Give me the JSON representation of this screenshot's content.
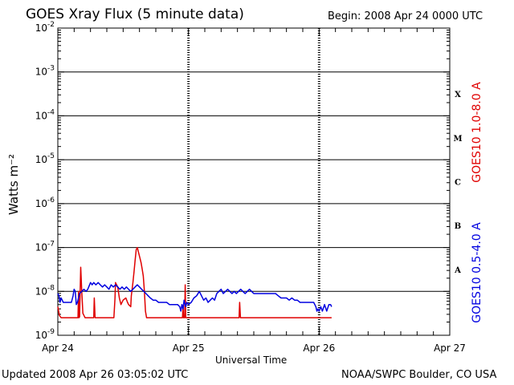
{
  "header": {
    "title": "GOES Xray Flux (5 minute data)",
    "begin": "Begin:  2008 Apr 24 0000 UTC"
  },
  "footer": {
    "updated": "Updated 2008 Apr 26 03:05:02 UTC",
    "credit": "NOAA/SWPC Boulder, CO USA"
  },
  "chart_data": {
    "type": "line",
    "title": "GOES Xray Flux (5 minute data)",
    "xlabel": "Universal Time",
    "ylabel": "Watts m⁻²",
    "yscale": "log",
    "ylim": [
      1e-09,
      0.01
    ],
    "xlim": [
      0,
      72
    ],
    "x_unit": "hours since 2008 Apr 24 0000 UTC",
    "x_ticks": [
      {
        "x": 0,
        "label": "Apr 24"
      },
      {
        "x": 24,
        "label": "Apr 25"
      },
      {
        "x": 48,
        "label": "Apr 26"
      },
      {
        "x": 72,
        "label": "Apr 27"
      }
    ],
    "y_ticks": [
      {
        "exp": -9,
        "base": "10",
        "sup": "-9"
      },
      {
        "exp": -8,
        "base": "10",
        "sup": "-8"
      },
      {
        "exp": -7,
        "base": "10",
        "sup": "-7"
      },
      {
        "exp": -6,
        "base": "10",
        "sup": "-6"
      },
      {
        "exp": -5,
        "base": "10",
        "sup": "-5"
      },
      {
        "exp": -4,
        "base": "10",
        "sup": "-4"
      },
      {
        "exp": -3,
        "base": "10",
        "sup": "-3"
      },
      {
        "exp": -2,
        "base": "10",
        "sup": "-2"
      }
    ],
    "flare_classes": [
      {
        "label": "A",
        "exp": -7.5
      },
      {
        "label": "B",
        "exp": -6.5
      },
      {
        "label": "C",
        "exp": -5.5
      },
      {
        "label": "M",
        "exp": -4.5
      },
      {
        "label": "X",
        "exp": -3.5
      }
    ],
    "grid": "horizontal lines at each decade from 1e-8 to 1e-3; dashed vertical lines at day boundaries",
    "series": [
      {
        "name": "GOES10 1.0-8.0 A",
        "color": "#e00000",
        "points": [
          [
            0.0,
            -8.35
          ],
          [
            0.3,
            -8.55
          ],
          [
            0.6,
            -8.6
          ],
          [
            1.2,
            -8.6
          ],
          [
            2.0,
            -8.6
          ],
          [
            3.0,
            -8.6
          ],
          [
            3.7,
            -8.6
          ],
          [
            3.8,
            -8.0
          ],
          [
            3.9,
            -8.6
          ],
          [
            4.0,
            -8.58
          ],
          [
            4.2,
            -7.45
          ],
          [
            4.4,
            -8.0
          ],
          [
            4.6,
            -8.5
          ],
          [
            5.0,
            -8.6
          ],
          [
            6.0,
            -8.6
          ],
          [
            6.6,
            -8.6
          ],
          [
            6.7,
            -8.15
          ],
          [
            6.85,
            -8.6
          ],
          [
            7.5,
            -8.6
          ],
          [
            8.5,
            -8.6
          ],
          [
            9.5,
            -8.6
          ],
          [
            10.3,
            -8.6
          ],
          [
            10.5,
            -8.15
          ],
          [
            10.6,
            -7.8
          ],
          [
            11.0,
            -7.9
          ],
          [
            11.3,
            -8.15
          ],
          [
            11.6,
            -8.3
          ],
          [
            12.0,
            -8.2
          ],
          [
            12.5,
            -8.15
          ],
          [
            12.8,
            -8.25
          ],
          [
            13.0,
            -8.3
          ],
          [
            13.4,
            -8.35
          ],
          [
            13.5,
            -8.1
          ],
          [
            13.8,
            -7.8
          ],
          [
            14.0,
            -7.55
          ],
          [
            14.2,
            -7.3
          ],
          [
            14.4,
            -7.05
          ],
          [
            14.6,
            -7.0
          ],
          [
            14.8,
            -7.1
          ],
          [
            15.0,
            -7.2
          ],
          [
            15.3,
            -7.35
          ],
          [
            15.5,
            -7.5
          ],
          [
            15.7,
            -7.65
          ],
          [
            15.9,
            -8.0
          ],
          [
            16.1,
            -8.45
          ],
          [
            16.3,
            -8.6
          ],
          [
            17.0,
            -8.6
          ],
          [
            18.0,
            -8.6
          ],
          [
            19.0,
            -8.6
          ],
          [
            20.0,
            -8.6
          ],
          [
            21.0,
            -8.6
          ],
          [
            22.0,
            -8.6
          ],
          [
            22.9,
            -8.6
          ],
          [
            23.0,
            -8.35
          ],
          [
            23.1,
            -8.6
          ],
          [
            23.3,
            -8.6
          ],
          [
            23.4,
            -7.85
          ],
          [
            23.5,
            -8.6
          ],
          [
            23.7,
            -8.6
          ],
          [
            24.0,
            -8.6
          ],
          [
            25.0,
            -8.6
          ],
          [
            26.0,
            -8.6
          ],
          [
            27.0,
            -8.6
          ],
          [
            28.0,
            -8.6
          ],
          [
            29.0,
            -8.6
          ],
          [
            30.0,
            -8.6
          ],
          [
            31.0,
            -8.6
          ],
          [
            32.0,
            -8.6
          ],
          [
            33.0,
            -8.6
          ],
          [
            33.3,
            -8.6
          ],
          [
            33.4,
            -8.25
          ],
          [
            33.55,
            -8.6
          ],
          [
            34.0,
            -8.6
          ],
          [
            35.0,
            -8.6
          ],
          [
            36.0,
            -8.6
          ],
          [
            37.0,
            -8.6
          ],
          [
            38.0,
            -8.6
          ],
          [
            39.0,
            -8.6
          ],
          [
            40.0,
            -8.6
          ],
          [
            41.0,
            -8.6
          ],
          [
            42.0,
            -8.6
          ],
          [
            43.0,
            -8.6
          ],
          [
            44.0,
            -8.6
          ],
          [
            45.0,
            -8.6
          ],
          [
            46.0,
            -8.6
          ],
          [
            47.0,
            -8.6
          ],
          [
            48.0,
            -8.6
          ],
          [
            49.0,
            -8.6
          ],
          [
            50.0,
            -8.6
          ],
          [
            50.3,
            -8.6
          ]
        ]
      },
      {
        "name": "GOES10 0.5-4.0 A",
        "color": "#0000e0",
        "points": [
          [
            0.0,
            -8.05
          ],
          [
            0.2,
            -8.1
          ],
          [
            0.4,
            -8.25
          ],
          [
            0.6,
            -8.15
          ],
          [
            0.8,
            -8.2
          ],
          [
            1.0,
            -8.25
          ],
          [
            1.5,
            -8.25
          ],
          [
            2.0,
            -8.25
          ],
          [
            2.5,
            -8.25
          ],
          [
            2.8,
            -8.1
          ],
          [
            3.0,
            -7.95
          ],
          [
            3.2,
            -8.0
          ],
          [
            3.4,
            -8.3
          ],
          [
            3.6,
            -8.25
          ],
          [
            4.0,
            -8.05
          ],
          [
            4.4,
            -8.0
          ],
          [
            4.8,
            -7.95
          ],
          [
            5.2,
            -8.0
          ],
          [
            5.5,
            -7.95
          ],
          [
            6.0,
            -7.8
          ],
          [
            6.3,
            -7.85
          ],
          [
            6.6,
            -7.8
          ],
          [
            7.0,
            -7.85
          ],
          [
            7.4,
            -7.8
          ],
          [
            7.8,
            -7.85
          ],
          [
            8.2,
            -7.9
          ],
          [
            8.6,
            -7.85
          ],
          [
            9.0,
            -7.9
          ],
          [
            9.4,
            -7.95
          ],
          [
            9.8,
            -7.85
          ],
          [
            10.2,
            -7.9
          ],
          [
            10.6,
            -7.85
          ],
          [
            11.0,
            -7.9
          ],
          [
            11.4,
            -7.95
          ],
          [
            11.8,
            -7.9
          ],
          [
            12.2,
            -7.95
          ],
          [
            12.6,
            -7.9
          ],
          [
            13.0,
            -7.95
          ],
          [
            13.4,
            -8.0
          ],
          [
            13.8,
            -7.95
          ],
          [
            14.2,
            -7.9
          ],
          [
            14.6,
            -7.85
          ],
          [
            15.0,
            -7.9
          ],
          [
            15.4,
            -7.95
          ],
          [
            15.8,
            -8.0
          ],
          [
            16.2,
            -8.05
          ],
          [
            16.6,
            -8.1
          ],
          [
            17.0,
            -8.15
          ],
          [
            17.5,
            -8.2
          ],
          [
            18.0,
            -8.2
          ],
          [
            18.5,
            -8.25
          ],
          [
            19.0,
            -8.25
          ],
          [
            19.5,
            -8.25
          ],
          [
            20.0,
            -8.25
          ],
          [
            20.5,
            -8.3
          ],
          [
            21.0,
            -8.3
          ],
          [
            21.5,
            -8.3
          ],
          [
            22.0,
            -8.3
          ],
          [
            22.4,
            -8.35
          ],
          [
            22.6,
            -8.45
          ],
          [
            22.8,
            -8.3
          ],
          [
            23.0,
            -8.4
          ],
          [
            23.2,
            -8.2
          ],
          [
            23.5,
            -8.35
          ],
          [
            23.7,
            -8.25
          ],
          [
            24.0,
            -8.3
          ],
          [
            24.5,
            -8.25
          ],
          [
            25.0,
            -8.15
          ],
          [
            25.5,
            -8.1
          ],
          [
            26.0,
            -8.0
          ],
          [
            26.4,
            -8.1
          ],
          [
            26.8,
            -8.2
          ],
          [
            27.2,
            -8.15
          ],
          [
            27.6,
            -8.25
          ],
          [
            28.0,
            -8.2
          ],
          [
            28.4,
            -8.15
          ],
          [
            28.8,
            -8.2
          ],
          [
            29.2,
            -8.05
          ],
          [
            29.6,
            -8.0
          ],
          [
            30.0,
            -7.95
          ],
          [
            30.4,
            -8.05
          ],
          [
            30.8,
            -8.0
          ],
          [
            31.2,
            -7.95
          ],
          [
            31.6,
            -8.0
          ],
          [
            32.0,
            -8.05
          ],
          [
            32.4,
            -8.0
          ],
          [
            32.8,
            -8.05
          ],
          [
            33.2,
            -8.0
          ],
          [
            33.6,
            -7.95
          ],
          [
            34.0,
            -8.0
          ],
          [
            34.4,
            -8.05
          ],
          [
            34.8,
            -8.0
          ],
          [
            35.2,
            -7.95
          ],
          [
            35.6,
            -8.0
          ],
          [
            36.0,
            -8.05
          ],
          [
            36.5,
            -8.05
          ],
          [
            37.0,
            -8.05
          ],
          [
            37.5,
            -8.05
          ],
          [
            38.0,
            -8.05
          ],
          [
            38.5,
            -8.05
          ],
          [
            39.0,
            -8.05
          ],
          [
            39.5,
            -8.05
          ],
          [
            40.0,
            -8.05
          ],
          [
            40.5,
            -8.1
          ],
          [
            41.0,
            -8.15
          ],
          [
            41.5,
            -8.15
          ],
          [
            42.0,
            -8.15
          ],
          [
            42.5,
            -8.2
          ],
          [
            43.0,
            -8.15
          ],
          [
            43.5,
            -8.2
          ],
          [
            44.0,
            -8.2
          ],
          [
            44.5,
            -8.25
          ],
          [
            45.0,
            -8.25
          ],
          [
            45.5,
            -8.25
          ],
          [
            46.0,
            -8.25
          ],
          [
            46.5,
            -8.25
          ],
          [
            47.0,
            -8.25
          ],
          [
            47.4,
            -8.35
          ],
          [
            47.6,
            -8.45
          ],
          [
            47.8,
            -8.4
          ],
          [
            48.0,
            -8.45
          ],
          [
            48.3,
            -8.35
          ],
          [
            48.6,
            -8.45
          ],
          [
            49.0,
            -8.3
          ],
          [
            49.4,
            -8.45
          ],
          [
            49.8,
            -8.3
          ],
          [
            50.1,
            -8.3
          ],
          [
            50.3,
            -8.35
          ]
        ]
      }
    ]
  }
}
